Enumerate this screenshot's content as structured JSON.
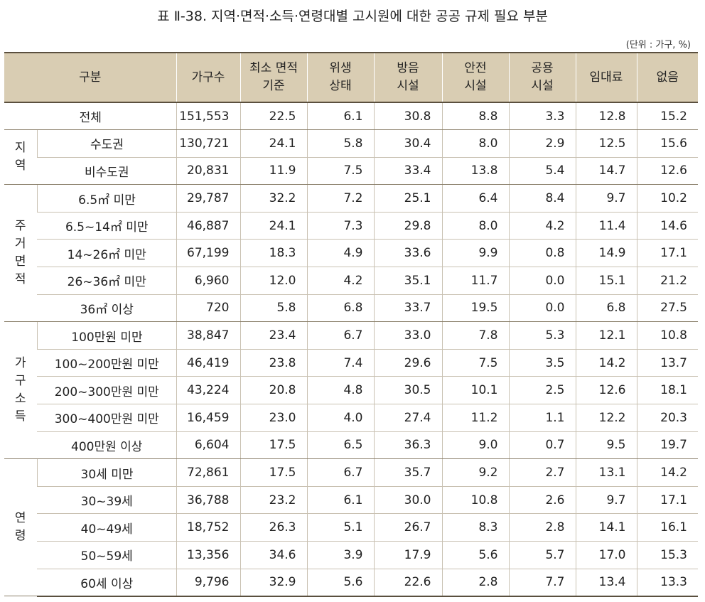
{
  "title": "표 Ⅱ-38. 지역·면적·소득·연령대별 고시원에 대한 공공 규제 필요 부분",
  "unit": "(단위 : 가구, %)",
  "headers": {
    "category": "구분",
    "households": "가구수",
    "min_area": [
      "최소 면적",
      "기준"
    ],
    "hygiene": [
      "위생",
      "상태"
    ],
    "soundproof": [
      "방음",
      "시설"
    ],
    "safety": [
      "안전",
      "시설"
    ],
    "shared": [
      "공용",
      "시설"
    ],
    "rent": "임대료",
    "none": "없음"
  },
  "total": {
    "label": "전체",
    "values": [
      "151,553",
      "22.5",
      "6.1",
      "30.8",
      "8.8",
      "3.3",
      "12.8",
      "15.2"
    ]
  },
  "groups": [
    {
      "name_chars": [
        "지",
        "역"
      ],
      "rows": [
        {
          "label": "수도권",
          "values": [
            "130,721",
            "24.1",
            "5.8",
            "30.4",
            "8.0",
            "2.9",
            "12.5",
            "15.6"
          ]
        },
        {
          "label": "비수도권",
          "values": [
            "20,831",
            "11.9",
            "7.5",
            "33.4",
            "13.8",
            "5.4",
            "14.7",
            "12.6"
          ]
        }
      ]
    },
    {
      "name_chars": [
        "주",
        "거",
        "면",
        "적"
      ],
      "rows": [
        {
          "label": "6.5㎡ 미만",
          "values": [
            "29,787",
            "32.2",
            "7.2",
            "25.1",
            "6.4",
            "8.4",
            "9.7",
            "10.2"
          ]
        },
        {
          "label": "6.5~14㎡ 미만",
          "values": [
            "46,887",
            "24.1",
            "7.3",
            "29.8",
            "8.0",
            "4.2",
            "11.4",
            "14.6"
          ]
        },
        {
          "label": "14~26㎡ 미만",
          "values": [
            "67,199",
            "18.3",
            "4.9",
            "33.6",
            "9.9",
            "0.8",
            "14.9",
            "17.1"
          ]
        },
        {
          "label": "26~36㎡ 미만",
          "values": [
            "6,960",
            "12.0",
            "4.2",
            "35.1",
            "11.7",
            "0.0",
            "15.1",
            "21.2"
          ]
        },
        {
          "label": "36㎡ 이상",
          "values": [
            "720",
            "5.8",
            "6.8",
            "33.7",
            "19.5",
            "0.0",
            "6.8",
            "27.5"
          ]
        }
      ]
    },
    {
      "name_chars": [
        "가",
        "구",
        "소",
        "득"
      ],
      "rows": [
        {
          "label": "100만원 미만",
          "values": [
            "38,847",
            "23.4",
            "6.7",
            "33.0",
            "7.8",
            "5.3",
            "12.1",
            "10.8"
          ]
        },
        {
          "label": "100~200만원 미만",
          "values": [
            "46,419",
            "23.8",
            "7.4",
            "29.6",
            "7.5",
            "3.5",
            "14.2",
            "13.7"
          ]
        },
        {
          "label": "200~300만원 미만",
          "values": [
            "43,224",
            "20.8",
            "4.8",
            "30.5",
            "10.1",
            "2.5",
            "12.6",
            "18.1"
          ]
        },
        {
          "label": "300~400만원 미만",
          "values": [
            "16,459",
            "23.0",
            "4.0",
            "27.4",
            "11.2",
            "1.1",
            "12.2",
            "20.3"
          ]
        },
        {
          "label": "400만원 이상",
          "values": [
            "6,604",
            "17.5",
            "6.5",
            "36.3",
            "9.0",
            "0.7",
            "9.5",
            "19.7"
          ]
        }
      ]
    },
    {
      "name_chars": [
        "연",
        "령"
      ],
      "rows": [
        {
          "label": "30세 미만",
          "values": [
            "72,861",
            "17.5",
            "6.7",
            "35.7",
            "9.2",
            "2.7",
            "13.1",
            "14.2"
          ]
        },
        {
          "label": "30~39세",
          "values": [
            "36,788",
            "23.2",
            "6.1",
            "30.0",
            "10.8",
            "2.6",
            "9.7",
            "17.1"
          ]
        },
        {
          "label": "40~49세",
          "values": [
            "18,752",
            "26.3",
            "5.1",
            "26.7",
            "8.3",
            "2.8",
            "14.1",
            "16.1"
          ]
        },
        {
          "label": "50~59세",
          "values": [
            "13,356",
            "34.6",
            "3.9",
            "17.9",
            "5.6",
            "5.7",
            "17.0",
            "15.3"
          ]
        },
        {
          "label": "60세 이상",
          "values": [
            "9,796",
            "32.9",
            "5.6",
            "22.6",
            "2.8",
            "7.7",
            "13.4",
            "13.3"
          ]
        }
      ]
    }
  ]
}
